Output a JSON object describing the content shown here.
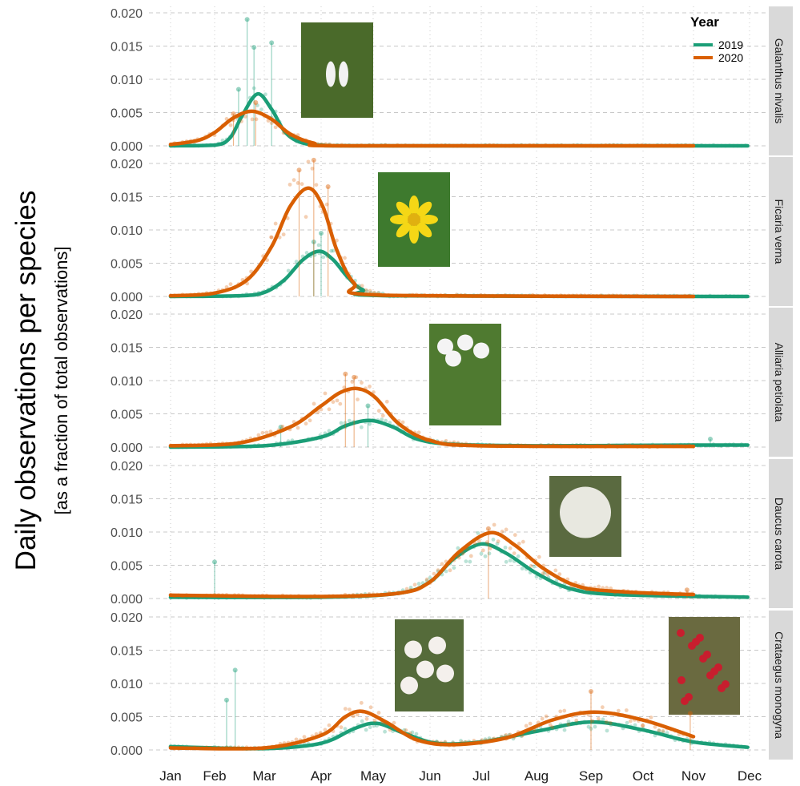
{
  "chart_data": {
    "type": "line",
    "ylabel": "Daily observations per species",
    "ylabel_sub": "[as a fraction of total observations]",
    "x_tick_labels": [
      "Jan",
      "Feb",
      "Mar",
      "Apr",
      "May",
      "Jun",
      "Jul",
      "Aug",
      "Sep",
      "Oct",
      "Nov",
      "Dec"
    ],
    "y_tick_labels": [
      "0.000",
      "0.005",
      "0.010",
      "0.015",
      "0.020"
    ],
    "ylim": [
      0,
      0.02
    ],
    "grid": true,
    "legend": {
      "title": "Year",
      "placement": "top-right",
      "entries": [
        "2019",
        "2020"
      ]
    },
    "colors": {
      "2019": "#1b9e77",
      "2020": "#d95f02"
    },
    "facets": [
      {
        "species": "Galanthus nivalis",
        "photo": "snowdrop",
        "series": [
          {
            "name": "2019",
            "smooth": [
              [
                "Jan 01",
                0
              ],
              [
                "Feb 01",
                0.0001
              ],
              [
                "Feb 10",
                0.0012
              ],
              [
                "Feb 17",
                0.0045
              ],
              [
                "Feb 26",
                0.0078
              ],
              [
                "Mar 05",
                0.0055
              ],
              [
                "Mar 12",
                0.0022
              ],
              [
                "Mar 20",
                0.0006
              ],
              [
                "Apr 01",
                0.0001
              ],
              [
                "May 01",
                0
              ],
              [
                "Nov 30",
                0
              ]
            ],
            "spikes": [
              [
                "Feb 20",
                0.019
              ],
              [
                "Mar 05",
                0.0155
              ],
              [
                "Feb 15",
                0.0085
              ],
              [
                "Feb 24",
                0.0148
              ]
            ]
          },
          {
            "name": "2020",
            "smooth": [
              [
                "Jan 01",
                0.0002
              ],
              [
                "Jan 20",
                0.0008
              ],
              [
                "Feb 01",
                0.002
              ],
              [
                "Feb 12",
                0.0042
              ],
              [
                "Feb 23",
                0.0052
              ],
              [
                "Mar 05",
                0.004
              ],
              [
                "Mar 15",
                0.0018
              ],
              [
                "Mar 28",
                0.0004
              ],
              [
                "Apr 15",
                0
              ],
              [
                "Nov 01",
                0
              ]
            ],
            "spikes": [
              [
                "Feb 25",
                0.0065
              ],
              [
                "Feb 12",
                0.0048
              ]
            ]
          }
        ]
      },
      {
        "species": "Ficaria verna",
        "photo": "lesser-celandine",
        "series": [
          {
            "name": "2019",
            "smooth": [
              [
                "Jan 01",
                0
              ],
              [
                "Feb 15",
                0.0001
              ],
              [
                "Mar 01",
                0.0006
              ],
              [
                "Mar 12",
                0.0025
              ],
              [
                "Mar 22",
                0.0055
              ],
              [
                "Mar 31",
                0.0068
              ],
              [
                "Apr 08",
                0.0055
              ],
              [
                "Apr 16",
                0.003
              ],
              [
                "Apr 25",
                0.001
              ],
              [
                "May 10",
                0.0001
              ],
              [
                "Nov 30",
                0
              ]
            ],
            "spikes": [
              [
                "Apr 01",
                0.0095
              ],
              [
                "Mar 28",
                0.0082
              ]
            ]
          },
          {
            "name": "2020",
            "smooth": [
              [
                "Jan 01",
                0.0001
              ],
              [
                "Feb 01",
                0.0005
              ],
              [
                "Feb 20",
                0.0025
              ],
              [
                "Mar 05",
                0.0075
              ],
              [
                "Mar 15",
                0.0135
              ],
              [
                "Mar 25",
                0.0163
              ],
              [
                "Apr 02",
                0.0135
              ],
              [
                "Apr 10",
                0.007
              ],
              [
                "Apr 20",
                0.002
              ],
              [
                "May 05",
                0.0002
              ],
              [
                "Nov 01",
                0
              ]
            ],
            "spikes": [
              [
                "Mar 28",
                0.0205
              ],
              [
                "Mar 20",
                0.019
              ],
              [
                "Apr 05",
                0.0165
              ]
            ]
          }
        ]
      },
      {
        "species": "Alliaria petiolata",
        "photo": "garlic-mustard",
        "series": [
          {
            "name": "2019",
            "smooth": [
              [
                "Jan 01",
                0
              ],
              [
                "Mar 01",
                0.0002
              ],
              [
                "Apr 01",
                0.0015
              ],
              [
                "Apr 15",
                0.0032
              ],
              [
                "Apr 29",
                0.004
              ],
              [
                "May 12",
                0.003
              ],
              [
                "May 25",
                0.0012
              ],
              [
                "Jun 15",
                0.0004
              ],
              [
                "Aug 01",
                0.0002
              ],
              [
                "Nov 01",
                0.0003
              ],
              [
                "Nov 30",
                0.0003
              ]
            ],
            "spikes": [
              [
                "Apr 28",
                0.0062
              ],
              [
                "Mar 10",
                0.003
              ],
              [
                "Nov 10",
                0.0012
              ]
            ]
          },
          {
            "name": "2020",
            "smooth": [
              [
                "Jan 01",
                0.0002
              ],
              [
                "Feb 15",
                0.0006
              ],
              [
                "Mar 15",
                0.003
              ],
              [
                "Apr 01",
                0.0062
              ],
              [
                "Apr 12",
                0.0082
              ],
              [
                "Apr 22",
                0.0088
              ],
              [
                "May 02",
                0.0075
              ],
              [
                "May 15",
                0.0035
              ],
              [
                "Jun 01",
                0.001
              ],
              [
                "Jul 01",
                0.0002
              ],
              [
                "Nov 01",
                0.0001
              ]
            ],
            "spikes": [
              [
                "Apr 15",
                0.011
              ],
              [
                "Apr 20",
                0.0105
              ]
            ]
          }
        ]
      },
      {
        "species": "Daucus carota",
        "photo": "wild-carrot",
        "series": [
          {
            "name": "2019",
            "smooth": [
              [
                "Jan 01",
                0.0002
              ],
              [
                "Apr 01",
                0.0002
              ],
              [
                "May 15",
                0.0008
              ],
              [
                "Jun 01",
                0.0025
              ],
              [
                "Jun 15",
                0.006
              ],
              [
                "Jul 01",
                0.0082
              ],
              [
                "Jul 15",
                0.0068
              ],
              [
                "Aug 01",
                0.0038
              ],
              [
                "Aug 20",
                0.0015
              ],
              [
                "Sep 15",
                0.0006
              ],
              [
                "Nov 30",
                0.0002
              ]
            ],
            "spikes": [
              [
                "Feb 01",
                0.0055
              ]
            ]
          },
          {
            "name": "2020",
            "smooth": [
              [
                "Jan 01",
                0.0005
              ],
              [
                "Apr 01",
                0.0003
              ],
              [
                "May 15",
                0.0008
              ],
              [
                "Jun 01",
                0.0025
              ],
              [
                "Jun 18",
                0.007
              ],
              [
                "Jul 06",
                0.0099
              ],
              [
                "Jul 20",
                0.008
              ],
              [
                "Aug 05",
                0.0045
              ],
              [
                "Aug 25",
                0.0018
              ],
              [
                "Sep 20",
                0.001
              ],
              [
                "Nov 01",
                0.0006
              ]
            ],
            "spikes": [
              [
                "Jul 05",
                0.0105
              ],
              [
                "Oct 28",
                0.0013
              ]
            ]
          }
        ]
      },
      {
        "species": "Crataegus monogyna",
        "photo": "hawthorn-flowers-and-berries",
        "series": [
          {
            "name": "2019",
            "smooth": [
              [
                "Jan 01",
                0.0005
              ],
              [
                "Mar 01",
                0.0002
              ],
              [
                "Apr 01",
                0.001
              ],
              [
                "Apr 20",
                0.0032
              ],
              [
                "May 03",
                0.004
              ],
              [
                "May 18",
                0.0025
              ],
              [
                "Jun 05",
                0.001
              ],
              [
                "Jul 01",
                0.0012
              ],
              [
                "Aug 01",
                0.0028
              ],
              [
                "Sep 01",
                0.0042
              ],
              [
                "Oct 01",
                0.003
              ],
              [
                "Nov 01",
                0.0012
              ],
              [
                "Nov 30",
                0.0004
              ]
            ],
            "spikes": [
              [
                "Feb 08",
                0.0075
              ],
              [
                "Feb 13",
                0.012
              ]
            ]
          },
          {
            "name": "2020",
            "smooth": [
              [
                "Jan 01",
                0.0003
              ],
              [
                "Mar 01",
                0.0003
              ],
              [
                "Apr 01",
                0.0022
              ],
              [
                "Apr 15",
                0.005
              ],
              [
                "Apr 25",
                0.0058
              ],
              [
                "May 08",
                0.0042
              ],
              [
                "May 25",
                0.0015
              ],
              [
                "Jun 15",
                0.0008
              ],
              [
                "Jul 15",
                0.0018
              ],
              [
                "Aug 10",
                0.0045
              ],
              [
                "Sep 03",
                0.0057
              ],
              [
                "Oct 01",
                0.0045
              ],
              [
                "Nov 01",
                0.002
              ]
            ],
            "spikes": [
              [
                "Sep 01",
                0.0088
              ],
              [
                "Oct 30",
                0.0055
              ]
            ]
          }
        ]
      }
    ]
  }
}
